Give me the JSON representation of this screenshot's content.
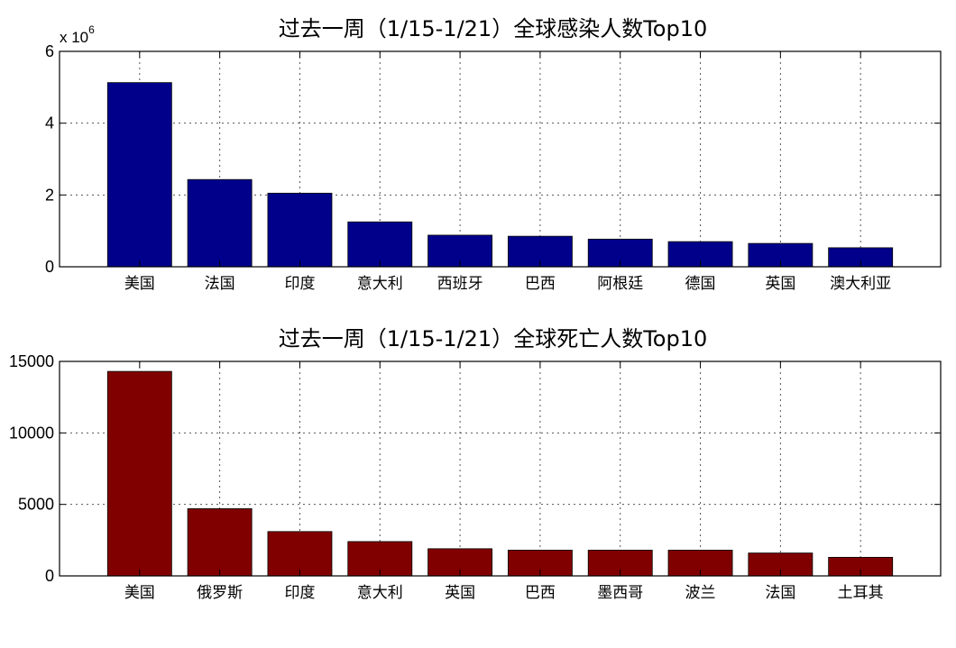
{
  "chart_data": [
    {
      "type": "bar",
      "title": "过去一周（1/15-1/21）全球感染人数Top10",
      "categories": [
        "美国",
        "法国",
        "印度",
        "意大利",
        "西班牙",
        "巴西",
        "阿根廷",
        "德国",
        "英国",
        "澳大利亚"
      ],
      "values": [
        5130000,
        2430000,
        2050000,
        1250000,
        880000,
        850000,
        770000,
        700000,
        650000,
        530000
      ],
      "ylim": [
        0,
        6000000
      ],
      "yticks": [
        0,
        2000000,
        4000000,
        6000000
      ],
      "ytick_labels": [
        "0",
        "2",
        "4",
        "6"
      ],
      "exponent_label": "x 10",
      "exponent_power": "6",
      "bar_color": "#00008B",
      "grid": true,
      "xlabel": "",
      "ylabel": ""
    },
    {
      "type": "bar",
      "title": "过去一周（1/15-1/21）全球死亡人数Top10",
      "categories": [
        "美国",
        "俄罗斯",
        "印度",
        "意大利",
        "英国",
        "巴西",
        "墨西哥",
        "波兰",
        "法国",
        "土耳其"
      ],
      "values": [
        14300,
        4700,
        3100,
        2400,
        1900,
        1800,
        1800,
        1800,
        1600,
        1300
      ],
      "ylim": [
        0,
        15000
      ],
      "yticks": [
        0,
        5000,
        10000,
        15000
      ],
      "ytick_labels": [
        "0",
        "5000",
        "10000",
        "15000"
      ],
      "bar_color": "#800000",
      "grid": true,
      "xlabel": "",
      "ylabel": ""
    }
  ]
}
